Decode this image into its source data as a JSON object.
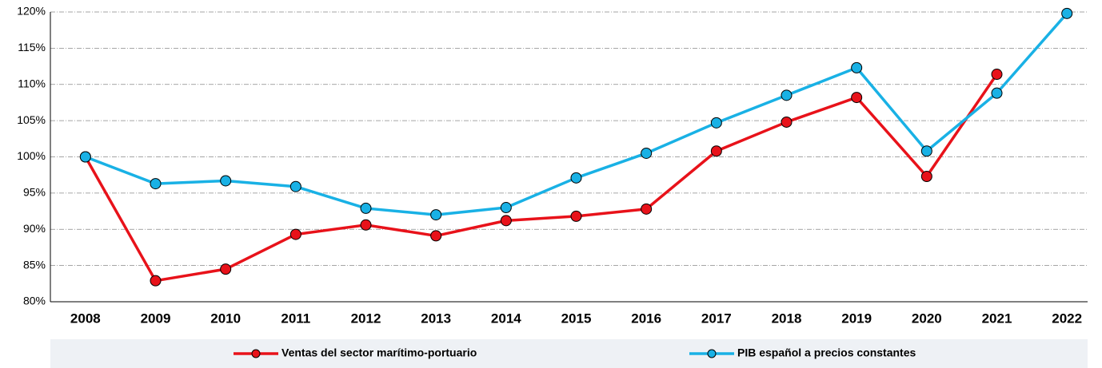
{
  "chart_data": {
    "type": "line",
    "categories": [
      "2008",
      "2009",
      "2010",
      "2011",
      "2012",
      "2013",
      "2014",
      "2015",
      "2016",
      "2017",
      "2018",
      "2019",
      "2020",
      "2021",
      "2022"
    ],
    "series": [
      {
        "name": "Ventas del sector marítimo-portuario",
        "color": "#e8121a",
        "values": [
          100,
          82.9,
          84.5,
          89.3,
          90.6,
          89.1,
          91.2,
          91.8,
          92.8,
          100.8,
          104.8,
          108.2,
          97.3,
          111.4,
          null
        ]
      },
      {
        "name": "PIB español a precios constantes",
        "color": "#19b1e5",
        "values": [
          100,
          96.3,
          96.7,
          95.9,
          92.9,
          92.0,
          93.0,
          97.1,
          100.5,
          104.7,
          108.5,
          112.3,
          100.8,
          108.8,
          119.8
        ]
      }
    ],
    "ylim": [
      80,
      120
    ],
    "yticks": [
      {
        "value": 80,
        "label": "80%"
      },
      {
        "value": 85,
        "label": "85%"
      },
      {
        "value": 90,
        "label": "90%"
      },
      {
        "value": 95,
        "label": "95%"
      },
      {
        "value": 100,
        "label": "100%"
      },
      {
        "value": 105,
        "label": "105%"
      },
      {
        "value": 110,
        "label": "110%"
      },
      {
        "value": 115,
        "label": "115%"
      },
      {
        "value": 120,
        "label": "120%"
      }
    ],
    "grid": true,
    "legend": "bottom"
  }
}
